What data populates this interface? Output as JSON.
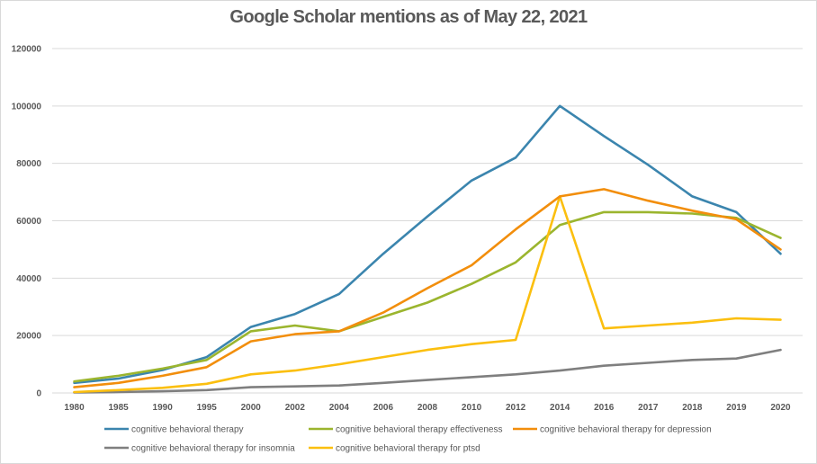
{
  "chart_data": {
    "type": "line",
    "title": "Google Scholar mentions as of May 22, 2021",
    "xlabel": "",
    "ylabel": "",
    "ylim": [
      0,
      120000
    ],
    "yticks": [
      0,
      20000,
      40000,
      60000,
      80000,
      100000,
      120000
    ],
    "ytick_labels": [
      "0",
      "20000",
      "40000",
      "60000",
      "80000",
      "100000",
      "120000"
    ],
    "grid": true,
    "legend_position": "bottom",
    "categories": [
      "1980",
      "1985",
      "1990",
      "1995",
      "2000",
      "2002",
      "2004",
      "2006",
      "2008",
      "2010",
      "2012",
      "2014",
      "2016",
      "2017",
      "2018",
      "2019",
      "2020"
    ],
    "series": [
      {
        "name": "cognitive behavioral therapy",
        "color": "#3b85ae",
        "values": [
          3500,
          5000,
          8000,
          12500,
          23000,
          27500,
          34500,
          48500,
          61500,
          74000,
          82000,
          100000,
          89500,
          79500,
          68500,
          63000,
          48500
        ]
      },
      {
        "name": "cognitive behavioral therapy effectiveness",
        "color": "#9bb52e",
        "values": [
          4000,
          6000,
          8500,
          11500,
          21500,
          23500,
          21500,
          26500,
          31500,
          38000,
          45500,
          58500,
          63000,
          63000,
          62500,
          61000,
          54000
        ]
      },
      {
        "name": "cognitive behavioral therapy for depression",
        "color": "#f28e0c",
        "values": [
          2000,
          3500,
          6000,
          9000,
          18000,
          20500,
          21500,
          28000,
          36500,
          44500,
          57000,
          68500,
          71000,
          67000,
          63500,
          60500,
          50000
        ]
      },
      {
        "name": "cognitive behavioral therapy for insomnia",
        "color": "#7f7f7f",
        "values": [
          200,
          300,
          600,
          1000,
          2000,
          2300,
          2600,
          3500,
          4500,
          5500,
          6500,
          7800,
          9500,
          10500,
          11500,
          12000,
          15000
        ]
      },
      {
        "name": "cognitive behavioral therapy for ptsd",
        "color": "#fbbf0f",
        "values": [
          300,
          1000,
          1800,
          3200,
          6500,
          7800,
          10000,
          12500,
          15000,
          17000,
          18500,
          68500,
          22500,
          23500,
          24500,
          26000,
          25500
        ]
      }
    ]
  }
}
